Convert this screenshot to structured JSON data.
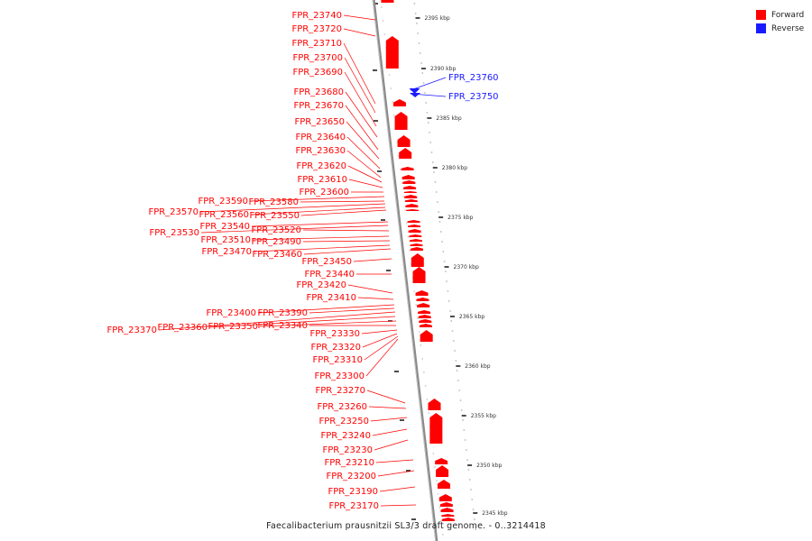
{
  "legend": {
    "forward_label": "Forward",
    "reverse_label": "Reverse",
    "forward_color": "#ff0000",
    "reverse_color": "#1a1aff"
  },
  "footer": {
    "caption": "Faecalibacterium prausnitzii SL3/3 draft genome. - 0..3214418"
  },
  "scale": {
    "ticks": [
      {
        "kbp": 2395,
        "label": "2395 kbp"
      },
      {
        "kbp": 2390,
        "label": "2390 kbp"
      },
      {
        "kbp": 2385,
        "label": "2385 kbp"
      },
      {
        "kbp": 2380,
        "label": "2380 kbp"
      },
      {
        "kbp": 2375,
        "label": "2375 kbp"
      },
      {
        "kbp": 2370,
        "label": "2370 kbp"
      },
      {
        "kbp": 2365,
        "label": "2365 kbp"
      },
      {
        "kbp": 2360,
        "label": "2360 kbp"
      },
      {
        "kbp": 2355,
        "label": "2355 kbp"
      },
      {
        "kbp": 2350,
        "label": "2350 kbp"
      },
      {
        "kbp": 2345,
        "label": "2345 kbp"
      }
    ]
  },
  "genes": [
    {
      "name": "FPR_23760",
      "strand": "reverse"
    },
    {
      "name": "FPR_23750",
      "strand": "reverse"
    },
    {
      "name": "FPR_23740",
      "strand": "forward"
    },
    {
      "name": "FPR_23720",
      "strand": "forward"
    },
    {
      "name": "FPR_23710",
      "strand": "forward"
    },
    {
      "name": "FPR_23700",
      "strand": "forward"
    },
    {
      "name": "FPR_23690",
      "strand": "forward"
    },
    {
      "name": "FPR_23680",
      "strand": "forward"
    },
    {
      "name": "FPR_23670",
      "strand": "forward"
    },
    {
      "name": "FPR_23650",
      "strand": "forward"
    },
    {
      "name": "FPR_23640",
      "strand": "forward"
    },
    {
      "name": "FPR_23630",
      "strand": "forward"
    },
    {
      "name": "FPR_23620",
      "strand": "forward"
    },
    {
      "name": "FPR_23610",
      "strand": "forward"
    },
    {
      "name": "FPR_23600",
      "strand": "forward"
    },
    {
      "name": "FPR_23590",
      "strand": "forward"
    },
    {
      "name": "FPR_23580",
      "strand": "forward"
    },
    {
      "name": "FPR_23570",
      "strand": "forward"
    },
    {
      "name": "FPR_23560",
      "strand": "forward"
    },
    {
      "name": "FPR_23550",
      "strand": "forward"
    },
    {
      "name": "FPR_23540",
      "strand": "forward"
    },
    {
      "name": "FPR_23530",
      "strand": "forward"
    },
    {
      "name": "FPR_23520",
      "strand": "forward"
    },
    {
      "name": "FPR_23510",
      "strand": "forward"
    },
    {
      "name": "FPR_23490",
      "strand": "forward"
    },
    {
      "name": "FPR_23470",
      "strand": "forward"
    },
    {
      "name": "FPR_23460",
      "strand": "forward"
    },
    {
      "name": "FPR_23450",
      "strand": "forward"
    },
    {
      "name": "FPR_23440",
      "strand": "forward"
    },
    {
      "name": "FPR_23420",
      "strand": "forward"
    },
    {
      "name": "FPR_23410",
      "strand": "forward"
    },
    {
      "name": "FPR_23400",
      "strand": "forward"
    },
    {
      "name": "FPR_23390",
      "strand": "forward"
    },
    {
      "name": "FPR_23370",
      "strand": "forward"
    },
    {
      "name": "FPR_23360",
      "strand": "forward"
    },
    {
      "name": "FPR_23350",
      "strand": "forward"
    },
    {
      "name": "FPR_23340",
      "strand": "forward"
    },
    {
      "name": "FPR_23330",
      "strand": "forward"
    },
    {
      "name": "FPR_23320",
      "strand": "forward"
    },
    {
      "name": "FPR_23310",
      "strand": "forward"
    },
    {
      "name": "FPR_23300",
      "strand": "forward"
    },
    {
      "name": "FPR_23270",
      "strand": "forward"
    },
    {
      "name": "FPR_23260",
      "strand": "forward"
    },
    {
      "name": "FPR_23250",
      "strand": "forward"
    },
    {
      "name": "FPR_23240",
      "strand": "forward"
    },
    {
      "name": "FPR_23230",
      "strand": "forward"
    },
    {
      "name": "FPR_23210",
      "strand": "forward"
    },
    {
      "name": "FPR_23200",
      "strand": "forward"
    },
    {
      "name": "FPR_23190",
      "strand": "forward"
    },
    {
      "name": "FPR_23170",
      "strand": "forward"
    }
  ]
}
